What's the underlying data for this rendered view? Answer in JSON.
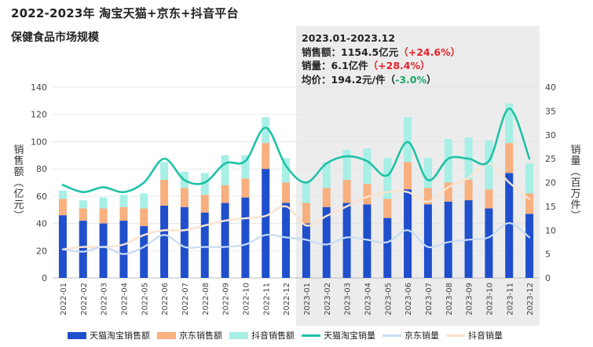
{
  "title": "2022-2023年 淘宝天猫+京东+抖音平台",
  "subtitle": "保健食品市场规模",
  "summary": {
    "period": "2023.01-2023.12",
    "sales_label": "销售额：",
    "sales_value": "1154.5亿元",
    "sales_change": "（+24.6%）",
    "volume_label": "销量：",
    "volume_value": "6.1亿件",
    "volume_change": "（+28.4%）",
    "price_label": "均价：",
    "price_value": "194.2元/件",
    "price_change_open": "（",
    "price_change": "-3.0%",
    "price_change_close": "）"
  },
  "colors": {
    "tmall": "#1f4fcc",
    "jd": "#f8b07f",
    "douyin": "#a8efe6",
    "tmall_line": "#1fc2a7",
    "jd_line": "#c8dbf3",
    "douyin_line": "#fce3cf",
    "highlight": "#ececec"
  },
  "chart_data": {
    "type": "bar",
    "stacked": true,
    "categories": [
      "2022-01",
      "2022-02",
      "2022-03",
      "2022-04",
      "2022-05",
      "2022-06",
      "2022-07",
      "2022-08",
      "2022-09",
      "2022-10",
      "2022-11",
      "2022-12",
      "2023-01",
      "2023-02",
      "2023-03",
      "2023-04",
      "2023-05",
      "2023-06",
      "2023-07",
      "2023-08",
      "2023-09",
      "2023-10",
      "2023-11",
      "2023-12"
    ],
    "ylabel": "销售额（亿元）",
    "y2label": "销量（百万件）",
    "ylim": [
      0,
      140
    ],
    "y2lim": [
      0,
      40
    ],
    "yticks": [
      0,
      20,
      40,
      60,
      80,
      100,
      120,
      140
    ],
    "y2ticks": [
      0,
      5,
      10,
      15,
      20,
      25,
      30,
      35,
      40
    ],
    "highlight_range": [
      "2023-01",
      "2023-12"
    ],
    "legend_position": "bottom",
    "series": [
      {
        "name": "天猫淘宝销售额",
        "kind": "bar",
        "axis": "left",
        "values": [
          46,
          42,
          40,
          42,
          38,
          53,
          52,
          48,
          55,
          59,
          80,
          55,
          40,
          52,
          55,
          54,
          44,
          65,
          54,
          56,
          57,
          51,
          77,
          47
        ]
      },
      {
        "name": "京东销售额",
        "kind": "bar",
        "axis": "left",
        "values": [
          12,
          9,
          11,
          10,
          13,
          19,
          14,
          13,
          13,
          14,
          19,
          15,
          15,
          14,
          17,
          15,
          14,
          20,
          12,
          14,
          15,
          14,
          22,
          15
        ]
      },
      {
        "name": "抖音销售额",
        "kind": "bar",
        "axis": "left",
        "values": [
          6,
          6,
          8,
          9,
          11,
          13,
          12,
          16,
          22,
          17,
          19,
          18,
          15,
          19,
          22,
          26,
          30,
          33,
          22,
          32,
          31,
          36,
          29,
          22
        ]
      },
      {
        "name": "天猫淘宝销量",
        "kind": "line",
        "axis": "right",
        "values": [
          19.5,
          18,
          19,
          18,
          20,
          25,
          20.5,
          20,
          24,
          24.5,
          31.5,
          23.5,
          20,
          24,
          25.5,
          24.5,
          21.5,
          28.5,
          20.5,
          25,
          25,
          24.5,
          35.5,
          25
        ]
      },
      {
        "name": "京东销量",
        "kind": "line",
        "axis": "right",
        "values": [
          6,
          5.5,
          6.5,
          5,
          6.5,
          9,
          6.5,
          6.5,
          6.5,
          7,
          9,
          8.5,
          8,
          7,
          8.5,
          8,
          7.5,
          10,
          6.5,
          7.5,
          8,
          8.5,
          11.5,
          8.5
        ]
      },
      {
        "name": "抖音销量",
        "kind": "line",
        "axis": "right",
        "values": [
          6,
          6.5,
          6.5,
          7,
          9,
          10,
          10,
          11,
          12,
          12.5,
          13,
          15,
          11,
          13,
          15,
          17,
          18,
          18,
          16,
          19,
          21,
          24,
          20,
          16.5
        ]
      }
    ]
  }
}
